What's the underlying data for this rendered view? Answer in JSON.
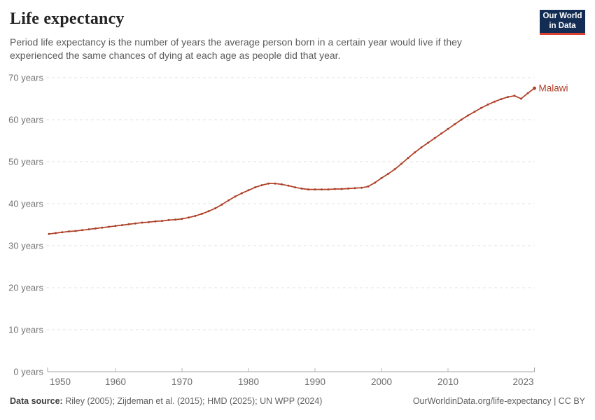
{
  "header": {
    "title": "Life expectancy",
    "subtitle": "Period life expectancy is the number of years the average person born in a certain year would live if they experienced the same chances of dying at each age as people did that year."
  },
  "logo": {
    "line1": "Our World",
    "line2": "in Data",
    "bg_color": "#122c54",
    "accent_color": "#dc3f34"
  },
  "chart_data": {
    "type": "line",
    "title": "Life expectancy",
    "xlabel": "",
    "ylabel": "",
    "xlim": [
      1950,
      2023
    ],
    "ylim": [
      0,
      70
    ],
    "x_ticks": [
      1950,
      1960,
      1970,
      1980,
      1990,
      2000,
      2010,
      2023
    ],
    "y_ticks": [
      0,
      10,
      20,
      30,
      40,
      50,
      60,
      70
    ],
    "y_tick_suffix": " years",
    "grid": "horizontal-dashed",
    "legend_position": "end-of-line-label",
    "x": [
      1950,
      1951,
      1952,
      1953,
      1954,
      1955,
      1956,
      1957,
      1958,
      1959,
      1960,
      1961,
      1962,
      1963,
      1964,
      1965,
      1966,
      1967,
      1968,
      1969,
      1970,
      1971,
      1972,
      1973,
      1974,
      1975,
      1976,
      1977,
      1978,
      1979,
      1980,
      1981,
      1982,
      1983,
      1984,
      1985,
      1986,
      1987,
      1988,
      1989,
      1990,
      1991,
      1992,
      1993,
      1994,
      1995,
      1996,
      1997,
      1998,
      1999,
      2000,
      2001,
      2002,
      2003,
      2004,
      2005,
      2006,
      2007,
      2008,
      2009,
      2010,
      2011,
      2012,
      2013,
      2014,
      2015,
      2016,
      2017,
      2018,
      2019,
      2020,
      2021,
      2022,
      2023
    ],
    "series": [
      {
        "name": "Malawi",
        "color": "#ad3f25",
        "values": [
          32.8,
          33.0,
          33.2,
          33.4,
          33.5,
          33.7,
          33.9,
          34.1,
          34.3,
          34.5,
          34.7,
          34.9,
          35.1,
          35.3,
          35.5,
          35.6,
          35.8,
          35.9,
          36.1,
          36.2,
          36.4,
          36.7,
          37.1,
          37.6,
          38.2,
          38.9,
          39.8,
          40.8,
          41.7,
          42.5,
          43.2,
          43.9,
          44.4,
          44.8,
          44.8,
          44.6,
          44.3,
          43.9,
          43.6,
          43.4,
          43.4,
          43.4,
          43.4,
          43.5,
          43.5,
          43.6,
          43.7,
          43.8,
          44.1,
          45.0,
          46.1,
          47.1,
          48.2,
          49.5,
          50.9,
          52.2,
          53.4,
          54.5,
          55.6,
          56.7,
          57.8,
          58.9,
          60.0,
          61.0,
          61.9,
          62.8,
          63.6,
          64.3,
          64.9,
          65.4,
          65.7,
          65.0,
          66.3,
          67.5
        ]
      }
    ]
  },
  "footer": {
    "source_label": "Data source:",
    "source_text": " Riley (2005); Zijdeman et al. (2015); HMD (2025); UN WPP (2024)",
    "link_text": "OurWorldinData.org/life-expectancy | CC BY"
  }
}
